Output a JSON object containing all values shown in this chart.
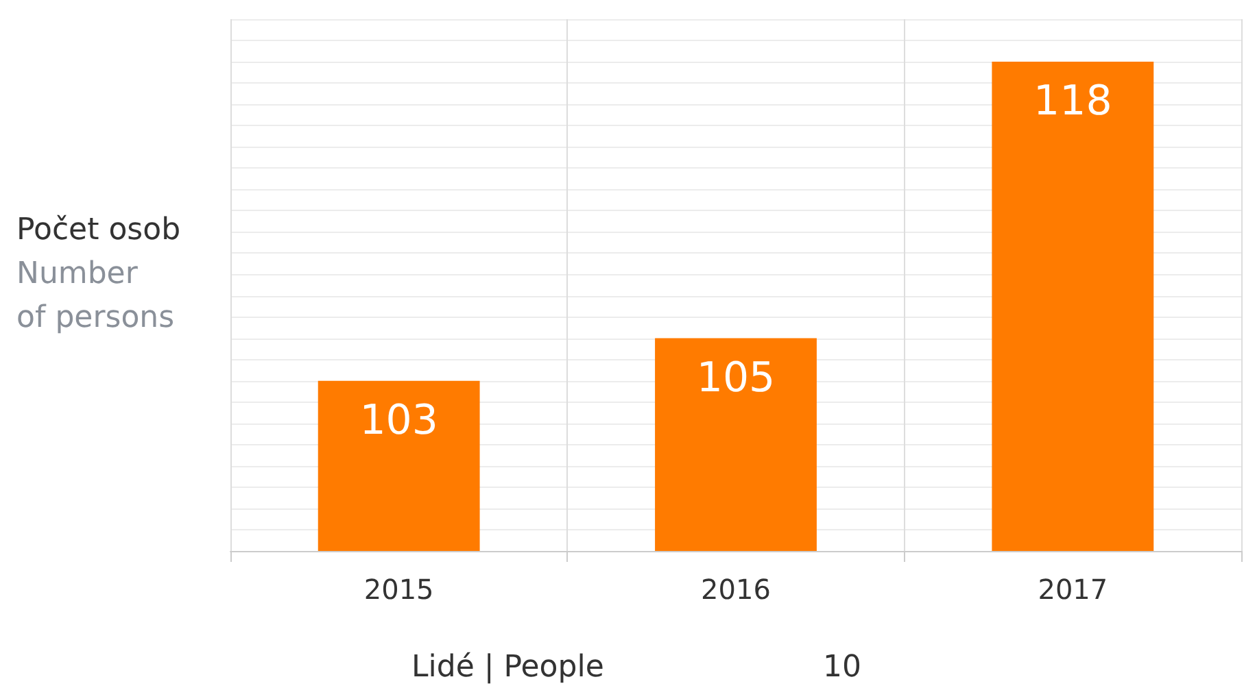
{
  "chart_data": {
    "type": "bar",
    "ylabel": "Počet osob\nNumber\nof persons",
    "categories": [
      "2015",
      "2016",
      "2017"
    ],
    "values": [
      103,
      105,
      118
    ],
    "color": "#ff7b00",
    "data_labels": true,
    "ylim": [
      95,
      120
    ],
    "yticks": [
      {
        "value": 95,
        "label": null
      },
      {
        "value": 96,
        "label": null
      },
      {
        "value": 97,
        "label": null
      },
      {
        "value": 98,
        "label": null
      },
      {
        "value": 99,
        "label": null
      },
      {
        "value": 100,
        "label": null
      },
      {
        "value": 101,
        "label": null
      },
      {
        "value": 102,
        "label": null
      },
      {
        "value": 103,
        "label": null
      },
      {
        "value": 104,
        "label": null
      },
      {
        "value": 105,
        "label": null
      },
      {
        "value": 106,
        "label": null
      },
      {
        "value": 107,
        "label": null
      },
      {
        "value": 108,
        "label": null
      },
      {
        "value": 109,
        "label": null
      },
      {
        "value": 110,
        "label": null
      },
      {
        "value": 111,
        "label": null
      },
      {
        "value": 112,
        "label": null
      },
      {
        "value": 113,
        "label": null
      },
      {
        "value": 114,
        "label": null
      },
      {
        "value": 115,
        "label": null
      },
      {
        "value": 116,
        "label": null
      },
      {
        "value": 117,
        "label": null
      },
      {
        "value": 118,
        "label": null
      },
      {
        "value": 119,
        "label": null
      },
      {
        "value": 120,
        "label": null
      }
    ],
    "grid": true,
    "tick_labels": "x",
    "annotations": [
      "Lidé | People",
      "10"
    ]
  }
}
